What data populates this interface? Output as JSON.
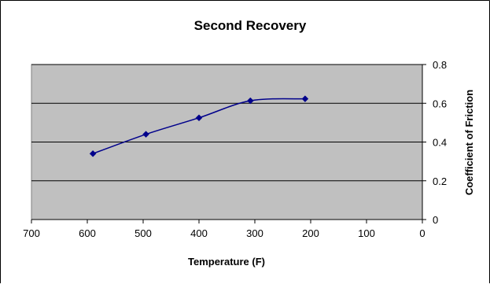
{
  "chart_data": {
    "type": "scatter",
    "title": "Second Recovery",
    "xlabel": "Temperature (F)",
    "ylabel": "Coefficient of Friction",
    "xlim": [
      700,
      0
    ],
    "ylim": [
      0,
      0.8
    ],
    "x_reversed": true,
    "y_axis_side": "right",
    "x_ticks": [
      700,
      600,
      500,
      400,
      300,
      200,
      100,
      0
    ],
    "y_ticks": [
      0,
      0.2,
      0.4,
      0.6,
      0.8
    ],
    "x_tick_labels": [
      "700",
      "600",
      "500",
      "400",
      "300",
      "200",
      "100",
      "0"
    ],
    "y_tick_labels": [
      "0",
      "0.2",
      "0.4",
      "0.6",
      "0.8"
    ],
    "grid": "horizontal",
    "legend": "none",
    "smoothed_line": true,
    "series": [
      {
        "x": [
          590,
          495,
          400,
          308,
          210
        ],
        "y": [
          0.34,
          0.44,
          0.525,
          0.613,
          0.623
        ],
        "color": "#00008B",
        "marker": "diamond"
      }
    ],
    "plot_background": "#C0C0C0",
    "gridline_color": "#000000"
  }
}
